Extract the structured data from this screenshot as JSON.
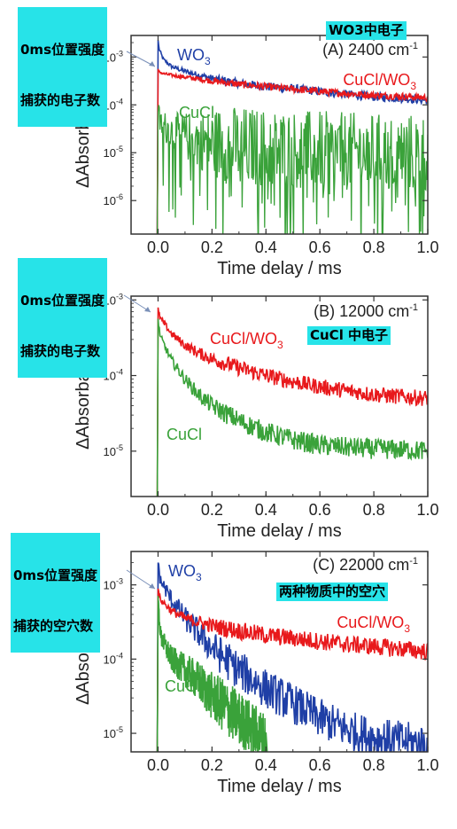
{
  "colors": {
    "wo3": "#1f3fa6",
    "cucl_wo3": "#e8191c",
    "cucl": "#3aa23a",
    "callout_bg": "#27e3e8",
    "axis": "#333333"
  },
  "callouts": {
    "panel_a_left_line1": "0ms位置强度",
    "panel_a_left_line2": "捕获的电子数",
    "panel_a_right": "WO3中电子",
    "panel_b_left_line1": "0ms位置强度",
    "panel_b_left_line2": "捕获的电子数",
    "panel_b_right": "CuCl 中电子",
    "panel_c_left_line1": "0ms位置强度",
    "panel_c_left_line2": "捕获的空穴数",
    "panel_c_right": "两种物质中的空穴"
  },
  "chart_data": [
    {
      "type": "line",
      "title": "(A) 2400 cm",
      "title_sup": "-1",
      "xlabel": "Time delay / ms",
      "ylabel": "ΔAbsorbance",
      "x_ticks": [
        "0.0",
        "0.2",
        "0.4",
        "0.6",
        "0.8",
        "1.0"
      ],
      "xlim": [
        -0.1,
        1.0
      ],
      "ylim_log10": [
        -6.7,
        -2.55
      ],
      "y_ticks": [
        {
          "base": "10",
          "exp": "-3"
        },
        {
          "base": "10",
          "exp": "-4"
        },
        {
          "base": "10",
          "exp": "-5"
        },
        {
          "base": "10",
          "exp": "-6"
        }
      ],
      "y_tick_values": [
        -3,
        -4,
        -5,
        -6
      ],
      "series": [
        {
          "name": "WO3",
          "label_main": "WO",
          "label_sub": "3",
          "color_key": "wo3",
          "x": [
            0.0,
            0.005,
            0.02,
            0.05,
            0.1,
            0.2,
            0.3,
            0.4,
            0.5,
            0.6,
            0.7,
            0.8,
            0.9,
            1.0
          ],
          "y_log10": [
            -2.7,
            -2.85,
            -3.05,
            -3.2,
            -3.3,
            -3.45,
            -3.55,
            -3.62,
            -3.66,
            -3.72,
            -3.78,
            -3.83,
            -3.86,
            -3.9
          ],
          "noise": 0.06
        },
        {
          "name": "CuCl/WO3",
          "label_main": "CuCl/WO",
          "label_sub": "3",
          "color_key": "cucl_wo3",
          "x": [
            0.0,
            0.02,
            0.05,
            0.1,
            0.2,
            0.3,
            0.4,
            0.5,
            0.6,
            0.7,
            0.8,
            0.9,
            1.0
          ],
          "y_log10": [
            -3.3,
            -3.35,
            -3.38,
            -3.42,
            -3.5,
            -3.57,
            -3.62,
            -3.67,
            -3.72,
            -3.76,
            -3.8,
            -3.82,
            -3.85
          ],
          "noise": 0.05
        },
        {
          "name": "CuCl",
          "label_main": "CuCl",
          "label_sub": "",
          "color_key": "cucl",
          "x": [
            0.0,
            0.01,
            0.05,
            0.1,
            0.2,
            0.4,
            0.6,
            0.8,
            1.0
          ],
          "y_log10": [
            -4.2,
            -4.4,
            -4.55,
            -4.65,
            -4.8,
            -4.9,
            -4.95,
            -5.0,
            -5.0
          ],
          "noise": 0.55
        }
      ]
    },
    {
      "type": "line",
      "title": "(B) 12000 cm",
      "title_sup": "-1",
      "xlabel": "Time delay / ms",
      "ylabel": "ΔAbsorbance",
      "x_ticks": [
        "0.0",
        "0.2",
        "0.4",
        "0.6",
        "0.8",
        "1.0"
      ],
      "xlim": [
        -0.1,
        1.0
      ],
      "ylim_log10": [
        -5.6,
        -2.95
      ],
      "y_ticks": [
        {
          "base": "10",
          "exp": "-3"
        },
        {
          "base": "10",
          "exp": "-4"
        },
        {
          "base": "10",
          "exp": "-5"
        }
      ],
      "y_tick_values": [
        -3,
        -4,
        -5
      ],
      "series": [
        {
          "name": "CuCl/WO3",
          "label_main": "CuCl/WO",
          "label_sub": "3",
          "color_key": "cucl_wo3",
          "x": [
            0.0,
            0.01,
            0.05,
            0.1,
            0.15,
            0.2,
            0.3,
            0.4,
            0.5,
            0.6,
            0.7,
            0.8,
            0.9,
            1.0
          ],
          "y_log10": [
            -3.15,
            -3.25,
            -3.45,
            -3.6,
            -3.7,
            -3.78,
            -3.9,
            -4.0,
            -4.08,
            -4.15,
            -4.2,
            -4.25,
            -4.28,
            -4.3
          ],
          "noise": 0.07
        },
        {
          "name": "CuCl",
          "label_main": "CuCl",
          "label_sub": "",
          "color_key": "cucl",
          "x": [
            0.0,
            0.01,
            0.05,
            0.1,
            0.15,
            0.2,
            0.3,
            0.4,
            0.5,
            0.6,
            0.7,
            0.8,
            0.9,
            1.0
          ],
          "y_log10": [
            -3.3,
            -3.5,
            -3.8,
            -4.05,
            -4.25,
            -4.4,
            -4.6,
            -4.75,
            -4.85,
            -4.92,
            -4.95,
            -4.97,
            -4.98,
            -5.0
          ],
          "noise": 0.09
        }
      ]
    },
    {
      "type": "line",
      "title": "(C) 22000 cm",
      "title_sup": "-1",
      "xlabel": "Time delay / ms",
      "ylabel": "ΔAbsorbance",
      "x_ticks": [
        "0.0",
        "0.2",
        "0.4",
        "0.6",
        "0.8",
        "1.0"
      ],
      "xlim": [
        -0.1,
        1.0
      ],
      "ylim_log10": [
        -5.25,
        -2.55
      ],
      "y_ticks": [
        {
          "base": "10",
          "exp": "-3"
        },
        {
          "base": "10",
          "exp": "-4"
        },
        {
          "base": "10",
          "exp": "-5"
        }
      ],
      "y_tick_values": [
        -3,
        -4,
        -5
      ],
      "series": [
        {
          "name": "WO3",
          "label_main": "WO",
          "label_sub": "3",
          "color_key": "wo3",
          "x": [
            0.0,
            0.01,
            0.05,
            0.1,
            0.15,
            0.2,
            0.3,
            0.4,
            0.5,
            0.6,
            0.7,
            0.8,
            0.9,
            1.0
          ],
          "y_log10": [
            -2.75,
            -2.95,
            -3.2,
            -3.45,
            -3.65,
            -3.85,
            -4.15,
            -4.4,
            -4.6,
            -4.8,
            -4.95,
            -5.05,
            -5.1,
            -5.15
          ],
          "noise": 0.18
        },
        {
          "name": "CuCl/WO3",
          "label_main": "CuCl/WO",
          "label_sub": "3",
          "color_key": "cucl_wo3",
          "x": [
            0.0,
            0.01,
            0.05,
            0.1,
            0.2,
            0.3,
            0.4,
            0.5,
            0.6,
            0.7,
            0.8,
            0.9,
            1.0
          ],
          "y_log10": [
            -3.1,
            -3.2,
            -3.35,
            -3.45,
            -3.55,
            -3.62,
            -3.68,
            -3.72,
            -3.76,
            -3.8,
            -3.83,
            -3.86,
            -3.9
          ],
          "noise": 0.08
        },
        {
          "name": "CuCl",
          "label_main": "CuCl",
          "label_sub": "",
          "color_key": "cucl",
          "x": [
            0.0,
            0.01,
            0.05,
            0.1,
            0.15,
            0.2,
            0.3,
            0.4
          ],
          "y_log10": [
            -3.2,
            -3.7,
            -4.0,
            -4.15,
            -4.3,
            -4.5,
            -4.8,
            -5.1
          ],
          "noise": 0.25
        }
      ]
    }
  ]
}
